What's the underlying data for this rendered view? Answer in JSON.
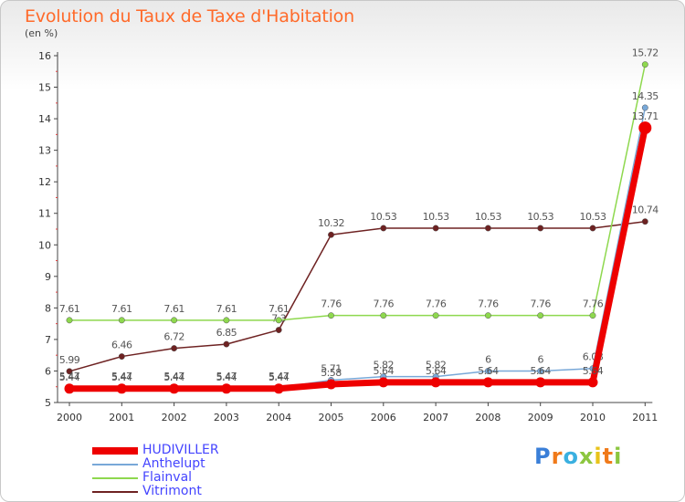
{
  "header": {
    "title": "Evolution du Taux de Taxe d'Habitation",
    "unit": "(en %)"
  },
  "brand": {
    "text": "Proxiti"
  },
  "chart_data": {
    "type": "line",
    "categories": [
      "2000",
      "2001",
      "2002",
      "2003",
      "2004",
      "2005",
      "2006",
      "2007",
      "2008",
      "2009",
      "2010",
      "2011"
    ],
    "ylim": [
      5,
      16
    ],
    "yticks": [
      "5",
      "6",
      "7",
      "8",
      "9",
      "10",
      "11",
      "12",
      "13",
      "14",
      "15",
      "16"
    ],
    "grid": false,
    "legend_position": "bottom-left",
    "series": [
      {
        "name": "Vitrimont",
        "color": "#6e2222",
        "values": [
          5.99,
          6.46,
          6.72,
          6.85,
          7.3,
          10.32,
          10.53,
          10.53,
          10.53,
          10.53,
          10.53,
          10.74
        ],
        "labels": [
          "5.99",
          "6.46",
          "6.72",
          "6.85",
          "7.3",
          "10.32",
          "10.53",
          "10.53",
          "10.53",
          "10.53",
          "10.53",
          "10.74"
        ]
      },
      {
        "name": "Flainval",
        "color": "#8ed84e",
        "values": [
          7.61,
          7.61,
          7.61,
          7.61,
          7.61,
          7.76,
          7.76,
          7.76,
          7.76,
          7.76,
          7.76,
          15.72
        ],
        "labels": [
          "7.61",
          "7.61",
          "7.61",
          "7.61",
          "7.61",
          "7.76",
          "7.76",
          "7.76",
          "7.76",
          "7.76",
          "7.76",
          "15.72"
        ]
      },
      {
        "name": "Anthelupt",
        "color": "#78a8d8",
        "values": [
          5.47,
          5.47,
          5.47,
          5.47,
          5.47,
          5.71,
          5.82,
          5.82,
          6,
          6,
          6.08,
          14.35
        ],
        "labels": [
          "5.47",
          "5.47",
          "5.47",
          "5.47",
          "5.47",
          "5.71",
          "5.82",
          "5.82",
          "6",
          "6",
          "6.08",
          "14.35"
        ]
      },
      {
        "name": "HUDIVILLER",
        "color": "#ee0000",
        "values": [
          5.44,
          5.44,
          5.44,
          5.44,
          5.44,
          5.58,
          5.64,
          5.64,
          5.64,
          5.64,
          5.64,
          13.71
        ],
        "labels": [
          "5.44",
          "5.44",
          "5.44",
          "5.44",
          "5.44",
          "5.58",
          "5.64",
          "5.64",
          "5.64",
          "5.64",
          "5.64",
          "13.71"
        ]
      }
    ],
    "legend": [
      {
        "name": "HUDIVILLER",
        "color": "#ee0000",
        "text_color": "#4444ff"
      },
      {
        "name": "Anthelupt",
        "color": "#78a8d8",
        "text_color": "#4444ff"
      },
      {
        "name": "Flainval",
        "color": "#8ed84e",
        "text_color": "#4444ff"
      },
      {
        "name": "Vitrimont",
        "color": "#6e2222",
        "text_color": "#4444ff"
      }
    ]
  }
}
